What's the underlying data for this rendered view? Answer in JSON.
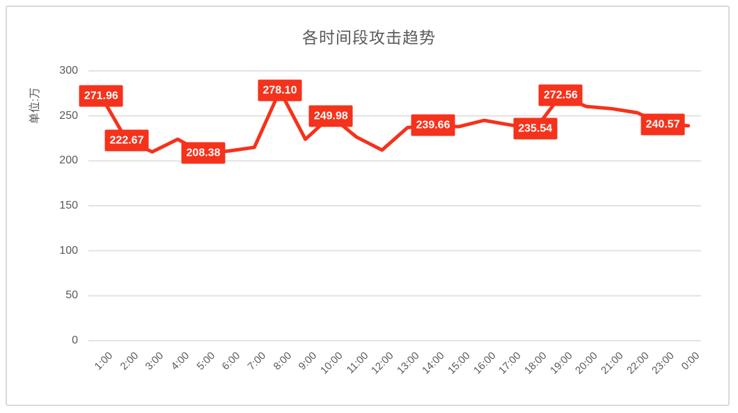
{
  "chart_data": {
    "type": "line",
    "title": "各时间段攻击趋势",
    "unit_label": "单位:万",
    "categories": [
      "1:00",
      "2:00",
      "3:00",
      "4:00",
      "5:00",
      "6:00",
      "7:00",
      "8:00",
      "9:00",
      "10:00",
      "11:00",
      "12:00",
      "13:00",
      "14:00",
      "15:00",
      "16:00",
      "17:00",
      "18:00",
      "19:00",
      "20:00",
      "21:00",
      "22:00",
      "23:00",
      "0:00"
    ],
    "values": [
      271.96,
      222.67,
      210,
      224,
      208.38,
      211,
      215,
      278.1,
      224,
      249.98,
      226.5,
      212,
      237,
      239.66,
      238,
      245,
      240,
      235.54,
      272.56,
      260.5,
      258,
      253.5,
      240.57,
      239
    ],
    "point_labels": [
      "271.96",
      "222.67",
      null,
      null,
      "208.38",
      null,
      null,
      "278.10",
      null,
      "249.98",
      null,
      null,
      null,
      "239.66",
      null,
      null,
      null,
      "235.54",
      "272.56",
      null,
      null,
      null,
      "240.57",
      null
    ],
    "ylim": [
      0,
      300
    ],
    "y_ticks": [
      0,
      50,
      100,
      150,
      200,
      250,
      300
    ],
    "grid": true,
    "legend": "none",
    "colors": {
      "line": "#f5321b",
      "label_bg": "#f5321b",
      "label_text": "#ffffff",
      "axis_text": "#595959",
      "grid_line": "#e2e2e2",
      "border": "#d9d9d9",
      "title_text": "#595959"
    }
  }
}
